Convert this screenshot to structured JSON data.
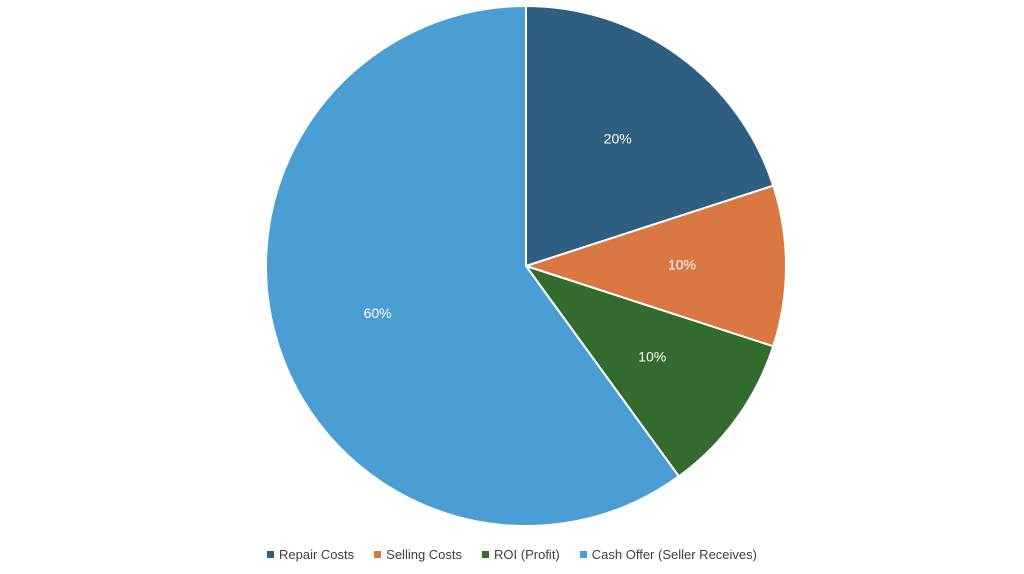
{
  "chart_data": {
    "type": "pie",
    "title": "",
    "legend_position": "bottom",
    "slices": [
      {
        "name": "Repair Costs",
        "value": 20,
        "label": "20%",
        "color": "#2e5f80"
      },
      {
        "name": "Selling Costs",
        "value": 10,
        "label": "10%",
        "color": "#d97843"
      },
      {
        "name": "ROI (Profit)",
        "value": 10,
        "label": "10%",
        "color": "#336a2e"
      },
      {
        "name": "Cash Offer (Seller Receives)",
        "value": 60,
        "label": "60%",
        "color": "#4a9ed3"
      }
    ]
  }
}
